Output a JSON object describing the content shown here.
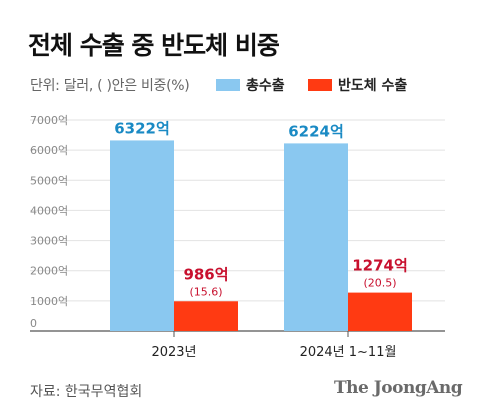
{
  "header": {
    "title": "전체 수출 중 반도체 비중",
    "unit_note": "단위: 달러, ( )안은 비중(%)"
  },
  "legend": [
    {
      "label": "총수출",
      "color": "#8ac8f0"
    },
    {
      "label": "반도체 수출",
      "color": "#ff3a12"
    }
  ],
  "chart_data": {
    "type": "bar",
    "categories": [
      "2023년",
      "2024년 1~11월"
    ],
    "series": [
      {
        "name": "총수출",
        "values": [
          6322,
          6224
        ],
        "labels": [
          "6322억",
          "6224억"
        ],
        "color": "#8ac8f0",
        "label_color": "#1a8ac4"
      },
      {
        "name": "반도체 수출",
        "values": [
          986,
          1274
        ],
        "labels": [
          "986억",
          "1274억"
        ],
        "shares": [
          "(15.6)",
          "(20.5)"
        ],
        "color": "#ff3a12",
        "label_color": "#c8102e"
      }
    ],
    "y_ticks": [
      "0",
      "1000억",
      "2000억",
      "3000억",
      "4000억",
      "5000억",
      "6000억",
      "7000억"
    ],
    "ylim": [
      0,
      7000
    ],
    "grid": true
  },
  "footer": {
    "source": "자료: 한국무역협회",
    "brand": "The JoongAng"
  }
}
